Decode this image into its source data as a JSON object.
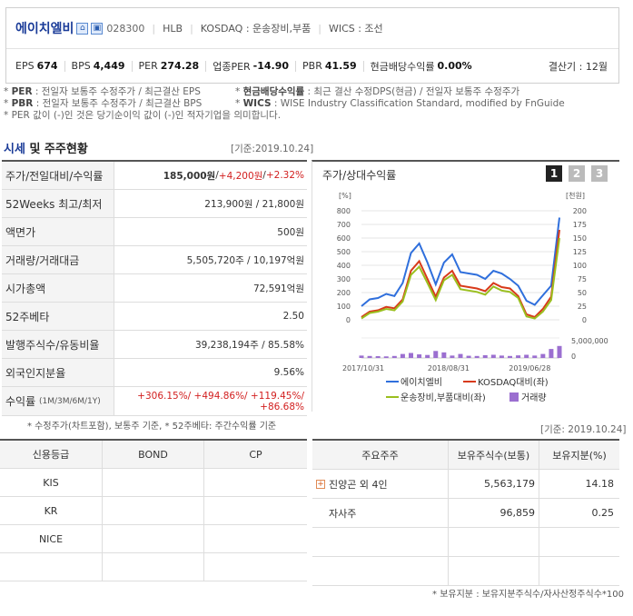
{
  "company": {
    "name": "에이치엘비",
    "code": "028300",
    "group": "HLB",
    "market": "KOSDAQ : 운송장비,부품",
    "wics": "WICS : 조선"
  },
  "metrics": [
    {
      "k": "EPS",
      "v": "674"
    },
    {
      "k": "BPS",
      "v": "4,449"
    },
    {
      "k": "PER",
      "v": "274.28"
    },
    {
      "k": "업종PER",
      "v": "-14.90"
    },
    {
      "k": "PBR",
      "v": "41.59"
    },
    {
      "k": "현금배당수익률",
      "v": "0.00%"
    }
  ],
  "settlement": "결산기 : 12월",
  "notes": {
    "per_k": "PER",
    "per_v": " : 전일자 보통주 수정주가 / 최근결산 EPS",
    "div_k": "현금배당수익률",
    "div_v": " : 최근 결산 수정DPS(현금) / 전일자 보통주 수정주가",
    "pbr_k": "PBR",
    "pbr_v": " : 전일자 보통주 수정주가 / 최근결산 BPS",
    "wics_k": "WICS",
    "wics_v": " : WISE Industry Classification Standard, modified by FnGuide",
    "line3": "* PER 값이 (-)인 것은 당기순이익 값이 (-)인 적자기업을 의미합니다."
  },
  "section": {
    "title_blue": "시세",
    "title_rest": " 및 주주현황",
    "base_date": "[기준:2019.10.24]",
    "base_date2": "[기준: 2019.10.24]"
  },
  "quote": {
    "price_label": "주가/전일대비/수익률",
    "price": "185,000원",
    "change": "+4,200원",
    "rate": "+2.32%",
    "slash": " / ",
    "rows": [
      {
        "k": "52Weeks 최고/최저",
        "v": "213,900원 / 21,800원"
      },
      {
        "k": "액면가",
        "v": "500원"
      },
      {
        "k": "거래량/거래대금",
        "v": "5,505,720주 / 10,197억원"
      },
      {
        "k": "시가총액",
        "v": "72,591억원"
      },
      {
        "k": "52주베타",
        "v": "2.50"
      },
      {
        "k": "발행주식수/유동비율",
        "v": "39,238,194주 / 85.58%"
      },
      {
        "k": "외국인지분율",
        "v": "9.56%"
      }
    ],
    "return_label": "수익률",
    "return_period": "(1M/3M/6M/1Y)",
    "return_line1": "+306.15%/ +494.86%/ +119.45%/",
    "return_line2": "+86.68%"
  },
  "footnote1": "* 수정주가(차트포함), 보통주 기준, * 52주베타: 주간수익률 기준",
  "chart_data": {
    "type": "line",
    "title": "주가/상대수익률",
    "buttons": [
      "1",
      "2",
      "3"
    ],
    "left_unit": "[%]",
    "right_unit": "[천원]",
    "y_left_ticks": [
      "800",
      "700",
      "600",
      "500",
      "400",
      "300",
      "200",
      "100",
      "0"
    ],
    "y_right_ticks": [
      "200",
      "175",
      "150",
      "125",
      "100",
      "75",
      "50",
      "25",
      "0"
    ],
    "volume_tick": "5,000,000",
    "volume_zero": "0",
    "x_ticks": [
      "2017/10/31",
      "2018/08/31",
      "2019/06/28"
    ],
    "ylim_left": [
      0,
      800
    ],
    "series": [
      {
        "name": "에이치엘비",
        "color": "#2f6fdc",
        "values": [
          100,
          150,
          160,
          190,
          175,
          270,
          490,
          560,
          420,
          260,
          420,
          480,
          350,
          340,
          330,
          300,
          360,
          340,
          300,
          250,
          140,
          110,
          180,
          250,
          750
        ]
      },
      {
        "name": "KOSDAQ대비(좌)",
        "color": "#d83a1a",
        "values": [
          20,
          60,
          70,
          95,
          85,
          150,
          360,
          430,
          300,
          170,
          310,
          360,
          250,
          240,
          230,
          210,
          270,
          240,
          230,
          175,
          40,
          20,
          80,
          170,
          660
        ]
      },
      {
        "name": "운송장비,부품대비(좌)",
        "color": "#9abf1e",
        "values": [
          10,
          50,
          60,
          80,
          70,
          135,
          330,
          390,
          270,
          145,
          290,
          330,
          225,
          215,
          205,
          185,
          245,
          215,
          205,
          160,
          25,
          10,
          60,
          145,
          600
        ]
      }
    ],
    "volume": {
      "name": "거래량",
      "color": "#9b6fd0",
      "values": [
        0.12,
        0.1,
        0.09,
        0.08,
        0.1,
        0.2,
        0.25,
        0.18,
        0.15,
        0.35,
        0.28,
        0.12,
        0.2,
        0.11,
        0.1,
        0.14,
        0.16,
        0.12,
        0.1,
        0.13,
        0.16,
        0.12,
        0.2,
        0.45,
        0.6
      ],
      "max": 5000000
    }
  },
  "credit": {
    "headers": [
      "신용등급",
      "BOND",
      "CP"
    ],
    "rows": [
      "KIS",
      "KR",
      "NICE",
      ""
    ]
  },
  "holders": {
    "headers": [
      "주요주주",
      "보유주식수(보통)",
      "보유지분(%)"
    ],
    "rows": [
      {
        "name": "진양곤 외 4인",
        "shares": "5,563,179",
        "pct": "14.18"
      },
      {
        "name": "자사주",
        "shares": "96,859",
        "pct": "0.25"
      }
    ]
  },
  "footnote2": "* 보유지분 : 보유지분주식수/자사산정주식수*100"
}
